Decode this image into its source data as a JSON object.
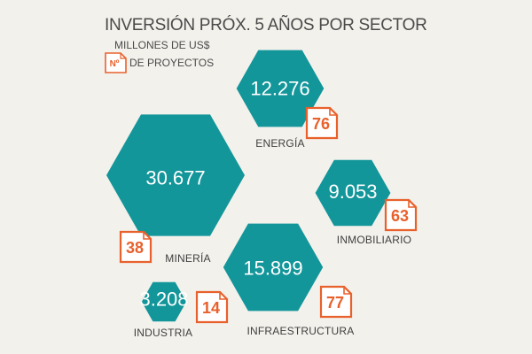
{
  "header": {
    "title": "INVERSIÓN PRÓX. 5 AÑOS POR SECTOR",
    "subtitle": "MILLONES DE US$",
    "legend_badge": "Nº",
    "legend_text": "DE PROYECTOS"
  },
  "colors": {
    "hexagon": "#13969a",
    "badge": "#e8612c",
    "text": "#4a4a4a",
    "background": "#f3f1ec"
  },
  "chart_data": {
    "type": "bubble",
    "title": "INVERSIÓN PRÓX. 5 AÑOS POR SECTOR",
    "unit": "MILLONES DE US$",
    "series": [
      {
        "name": "MINERÍA",
        "value": 30677,
        "value_label": "30.677",
        "projects": 38
      },
      {
        "name": "INFRAESTRUCTURA",
        "value": 15899,
        "value_label": "15.899",
        "projects": 77
      },
      {
        "name": "ENERGÍA",
        "value": 12276,
        "value_label": "12.276",
        "projects": 76
      },
      {
        "name": "INMOBILIARIO",
        "value": 9053,
        "value_label": "9.053",
        "projects": 63
      },
      {
        "name": "INDUSTRIA",
        "value": 3208,
        "value_label": "3.208",
        "projects": 14
      }
    ]
  }
}
